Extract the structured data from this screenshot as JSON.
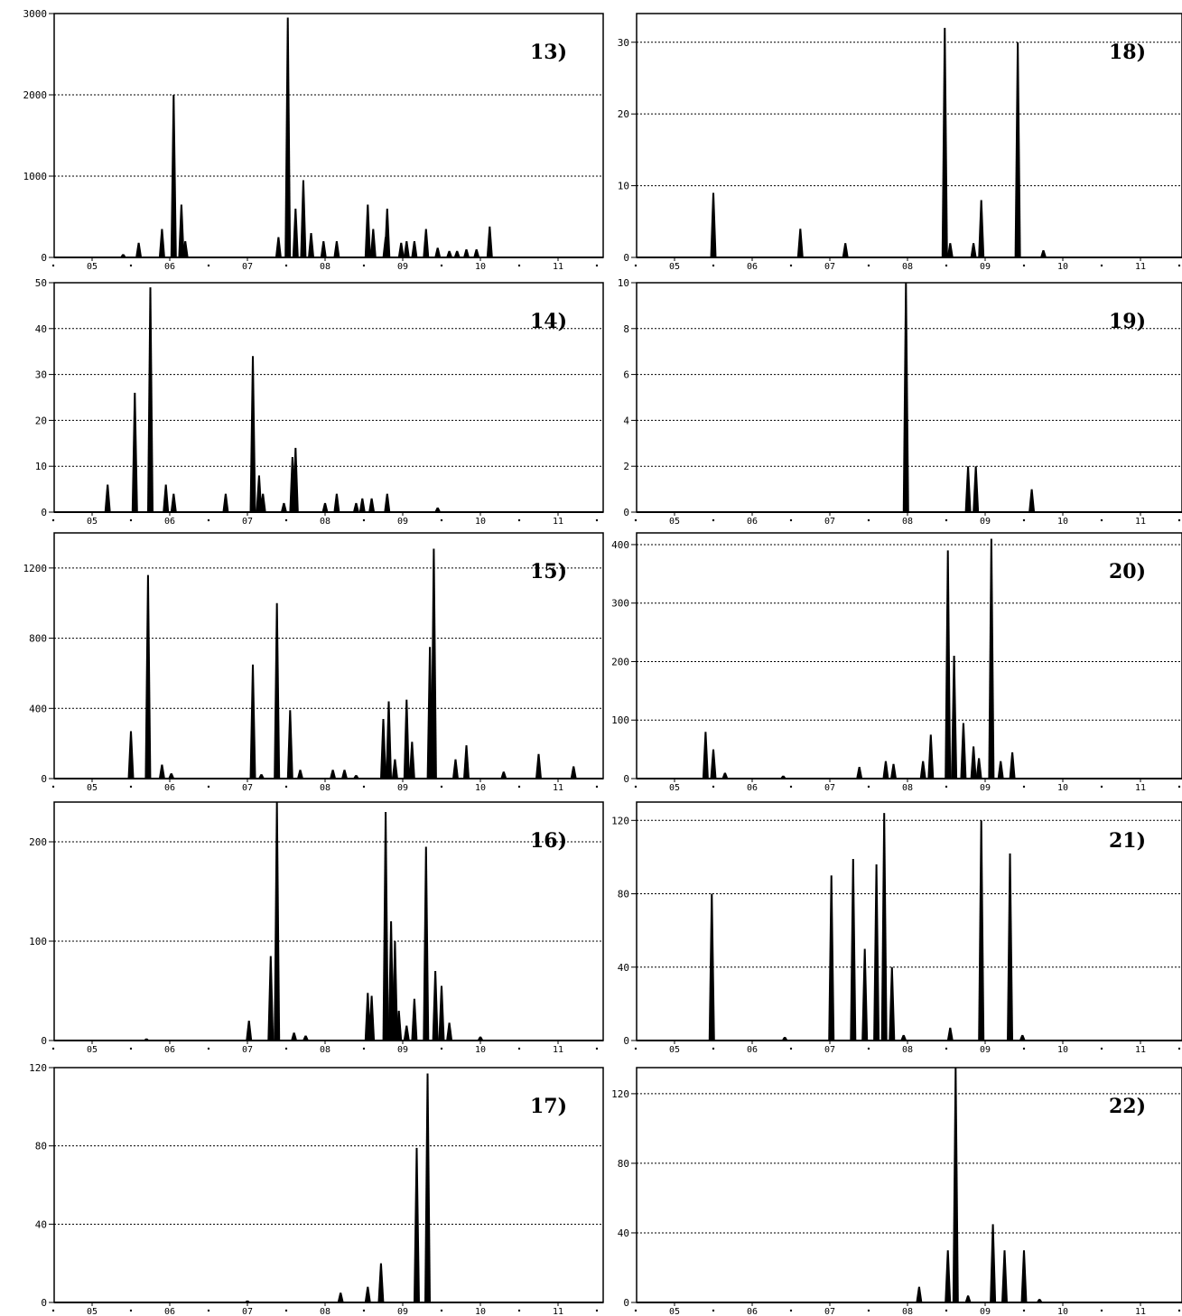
{
  "chart_data": [
    {
      "type": "area",
      "panel_label": "13)",
      "ylim": [
        0,
        3000
      ],
      "yticks": [
        0,
        1000,
        2000,
        3000
      ],
      "xticks": [
        "05",
        "06",
        "07",
        "08",
        "09",
        "10",
        "11"
      ],
      "grid": true,
      "peaks": [
        [
          0.4,
          40
        ],
        [
          0.6,
          180
        ],
        [
          0.9,
          350
        ],
        [
          1.05,
          2000
        ],
        [
          1.15,
          650
        ],
        [
          1.2,
          200
        ],
        [
          2.4,
          250
        ],
        [
          2.52,
          2950
        ],
        [
          2.62,
          600
        ],
        [
          2.72,
          950
        ],
        [
          2.82,
          300
        ],
        [
          2.98,
          200
        ],
        [
          3.15,
          200
        ],
        [
          3.55,
          650
        ],
        [
          3.62,
          350
        ],
        [
          3.78,
          250
        ],
        [
          3.8,
          600
        ],
        [
          3.98,
          180
        ],
        [
          4.05,
          200
        ],
        [
          4.15,
          200
        ],
        [
          4.3,
          350
        ],
        [
          4.45,
          120
        ],
        [
          4.6,
          80
        ],
        [
          4.7,
          80
        ],
        [
          4.82,
          100
        ],
        [
          4.95,
          100
        ],
        [
          5.12,
          380
        ]
      ]
    },
    {
      "type": "area",
      "panel_label": "14)",
      "ylim": [
        0,
        50
      ],
      "yticks": [
        0,
        10,
        20,
        30,
        40,
        50
      ],
      "xticks": [
        "05",
        "06",
        "07",
        "08",
        "09",
        "10",
        "11"
      ],
      "grid": true,
      "peaks": [
        [
          0.2,
          6
        ],
        [
          0.55,
          26
        ],
        [
          0.75,
          49
        ],
        [
          0.95,
          6
        ],
        [
          1.05,
          4
        ],
        [
          1.72,
          4
        ],
        [
          2.07,
          34
        ],
        [
          2.15,
          8
        ],
        [
          2.2,
          4
        ],
        [
          2.47,
          2
        ],
        [
          2.58,
          12
        ],
        [
          2.62,
          14
        ],
        [
          3.0,
          2
        ],
        [
          3.15,
          4
        ],
        [
          3.4,
          2
        ],
        [
          3.48,
          3
        ],
        [
          3.6,
          3
        ],
        [
          3.8,
          4
        ],
        [
          4.45,
          1
        ]
      ]
    },
    {
      "type": "area",
      "panel_label": "15)",
      "ylim": [
        0,
        1400
      ],
      "yticks": [
        0,
        400,
        800,
        1200
      ],
      "xticks": [
        "05",
        "06",
        "07",
        "08",
        "09",
        "10",
        "11"
      ],
      "grid": true,
      "peaks": [
        [
          0.5,
          270
        ],
        [
          0.72,
          1160
        ],
        [
          0.9,
          80
        ],
        [
          1.02,
          30
        ],
        [
          2.07,
          650
        ],
        [
          2.18,
          25
        ],
        [
          2.38,
          1000
        ],
        [
          2.55,
          390
        ],
        [
          2.68,
          50
        ],
        [
          3.1,
          50
        ],
        [
          3.25,
          50
        ],
        [
          3.4,
          20
        ],
        [
          3.75,
          340
        ],
        [
          3.82,
          440
        ],
        [
          3.9,
          110
        ],
        [
          4.05,
          450
        ],
        [
          4.12,
          210
        ],
        [
          4.35,
          750
        ],
        [
          4.4,
          1310
        ],
        [
          4.68,
          110
        ],
        [
          4.82,
          190
        ],
        [
          5.3,
          40
        ],
        [
          5.75,
          140
        ],
        [
          6.2,
          70
        ]
      ]
    },
    {
      "type": "area",
      "panel_label": "16)",
      "ylim": [
        0,
        240
      ],
      "yticks": [
        0,
        100,
        200
      ],
      "xticks": [
        "05",
        "06",
        "07",
        "08",
        "09",
        "10",
        "11"
      ],
      "grid": true,
      "peaks": [
        [
          0.7,
          2
        ],
        [
          2.02,
          20
        ],
        [
          2.3,
          85
        ],
        [
          2.38,
          240
        ],
        [
          2.6,
          8
        ],
        [
          2.75,
          5
        ],
        [
          3.55,
          48
        ],
        [
          3.6,
          45
        ],
        [
          3.78,
          230
        ],
        [
          3.85,
          120
        ],
        [
          3.9,
          100
        ],
        [
          3.95,
          30
        ],
        [
          4.05,
          15
        ],
        [
          4.15,
          42
        ],
        [
          4.3,
          195
        ],
        [
          4.42,
          70
        ],
        [
          4.5,
          55
        ],
        [
          4.6,
          18
        ],
        [
          5.0,
          4
        ]
      ]
    },
    {
      "type": "area",
      "panel_label": "17)",
      "ylim": [
        0,
        120
      ],
      "yticks": [
        0,
        40,
        80,
        120
      ],
      "xticks": [
        "05",
        "06",
        "07",
        "08",
        "09",
        "10",
        "11"
      ],
      "grid": true,
      "peaks": [
        [
          2.0,
          1
        ],
        [
          3.2,
          5
        ],
        [
          3.55,
          8
        ],
        [
          3.72,
          20
        ],
        [
          4.18,
          79
        ],
        [
          4.32,
          117
        ]
      ]
    },
    {
      "type": "area",
      "panel_label": "18)",
      "ylim": [
        0,
        34
      ],
      "yticks": [
        0,
        10,
        20,
        30
      ],
      "xticks": [
        "05",
        "06",
        "07",
        "08",
        "09",
        "10",
        "11"
      ],
      "grid": true,
      "peaks": [
        [
          0.5,
          9
        ],
        [
          1.62,
          4
        ],
        [
          2.2,
          2
        ],
        [
          3.48,
          32
        ],
        [
          3.55,
          2
        ],
        [
          3.85,
          2
        ],
        [
          3.95,
          8
        ],
        [
          4.42,
          30
        ],
        [
          4.75,
          1
        ]
      ]
    },
    {
      "type": "area",
      "panel_label": "19)",
      "ylim": [
        0,
        10
      ],
      "yticks": [
        0,
        2,
        4,
        6,
        8,
        10
      ],
      "xticks": [
        "05",
        "06",
        "07",
        "08",
        "09",
        "10",
        "11"
      ],
      "grid": true,
      "peaks": [
        [
          2.98,
          10
        ],
        [
          3.78,
          2
        ],
        [
          3.88,
          2
        ],
        [
          4.6,
          1
        ]
      ]
    },
    {
      "type": "area",
      "panel_label": "20)",
      "ylim": [
        0,
        420
      ],
      "yticks": [
        0,
        100,
        200,
        300,
        400
      ],
      "xticks": [
        "05",
        "06",
        "07",
        "08",
        "09",
        "10",
        "11"
      ],
      "grid": true,
      "peaks": [
        [
          0.4,
          80
        ],
        [
          0.5,
          50
        ],
        [
          0.65,
          10
        ],
        [
          1.4,
          5
        ],
        [
          2.38,
          20
        ],
        [
          2.72,
          30
        ],
        [
          2.82,
          25
        ],
        [
          3.2,
          30
        ],
        [
          3.3,
          75
        ],
        [
          3.52,
          390
        ],
        [
          3.6,
          210
        ],
        [
          3.72,
          95
        ],
        [
          3.85,
          55
        ],
        [
          3.92,
          35
        ],
        [
          4.08,
          410
        ],
        [
          4.2,
          30
        ],
        [
          4.35,
          45
        ]
      ]
    },
    {
      "type": "area",
      "panel_label": "21)",
      "ylim": [
        0,
        130
      ],
      "yticks": [
        0,
        40,
        80,
        120
      ],
      "xticks": [
        "05",
        "06",
        "07",
        "08",
        "09",
        "10",
        "11"
      ],
      "grid": true,
      "peaks": [
        [
          0.48,
          80
        ],
        [
          1.42,
          2
        ],
        [
          2.02,
          90
        ],
        [
          2.3,
          99
        ],
        [
          2.45,
          50
        ],
        [
          2.6,
          96
        ],
        [
          2.7,
          124
        ],
        [
          2.8,
          40
        ],
        [
          2.95,
          3
        ],
        [
          3.55,
          7
        ],
        [
          3.95,
          120
        ],
        [
          4.32,
          102
        ],
        [
          4.48,
          3
        ]
      ]
    },
    {
      "type": "area",
      "panel_label": "22)",
      "ylim": [
        0,
        135
      ],
      "yticks": [
        0,
        40,
        80,
        120
      ],
      "xticks": [
        "05",
        "06",
        "07",
        "08",
        "09",
        "10",
        "11"
      ],
      "grid": true,
      "peaks": [
        [
          3.15,
          9
        ],
        [
          3.52,
          30
        ],
        [
          3.62,
          137
        ],
        [
          3.78,
          4
        ],
        [
          4.1,
          45
        ],
        [
          4.25,
          30
        ],
        [
          4.5,
          30
        ],
        [
          4.7,
          2
        ]
      ]
    }
  ]
}
